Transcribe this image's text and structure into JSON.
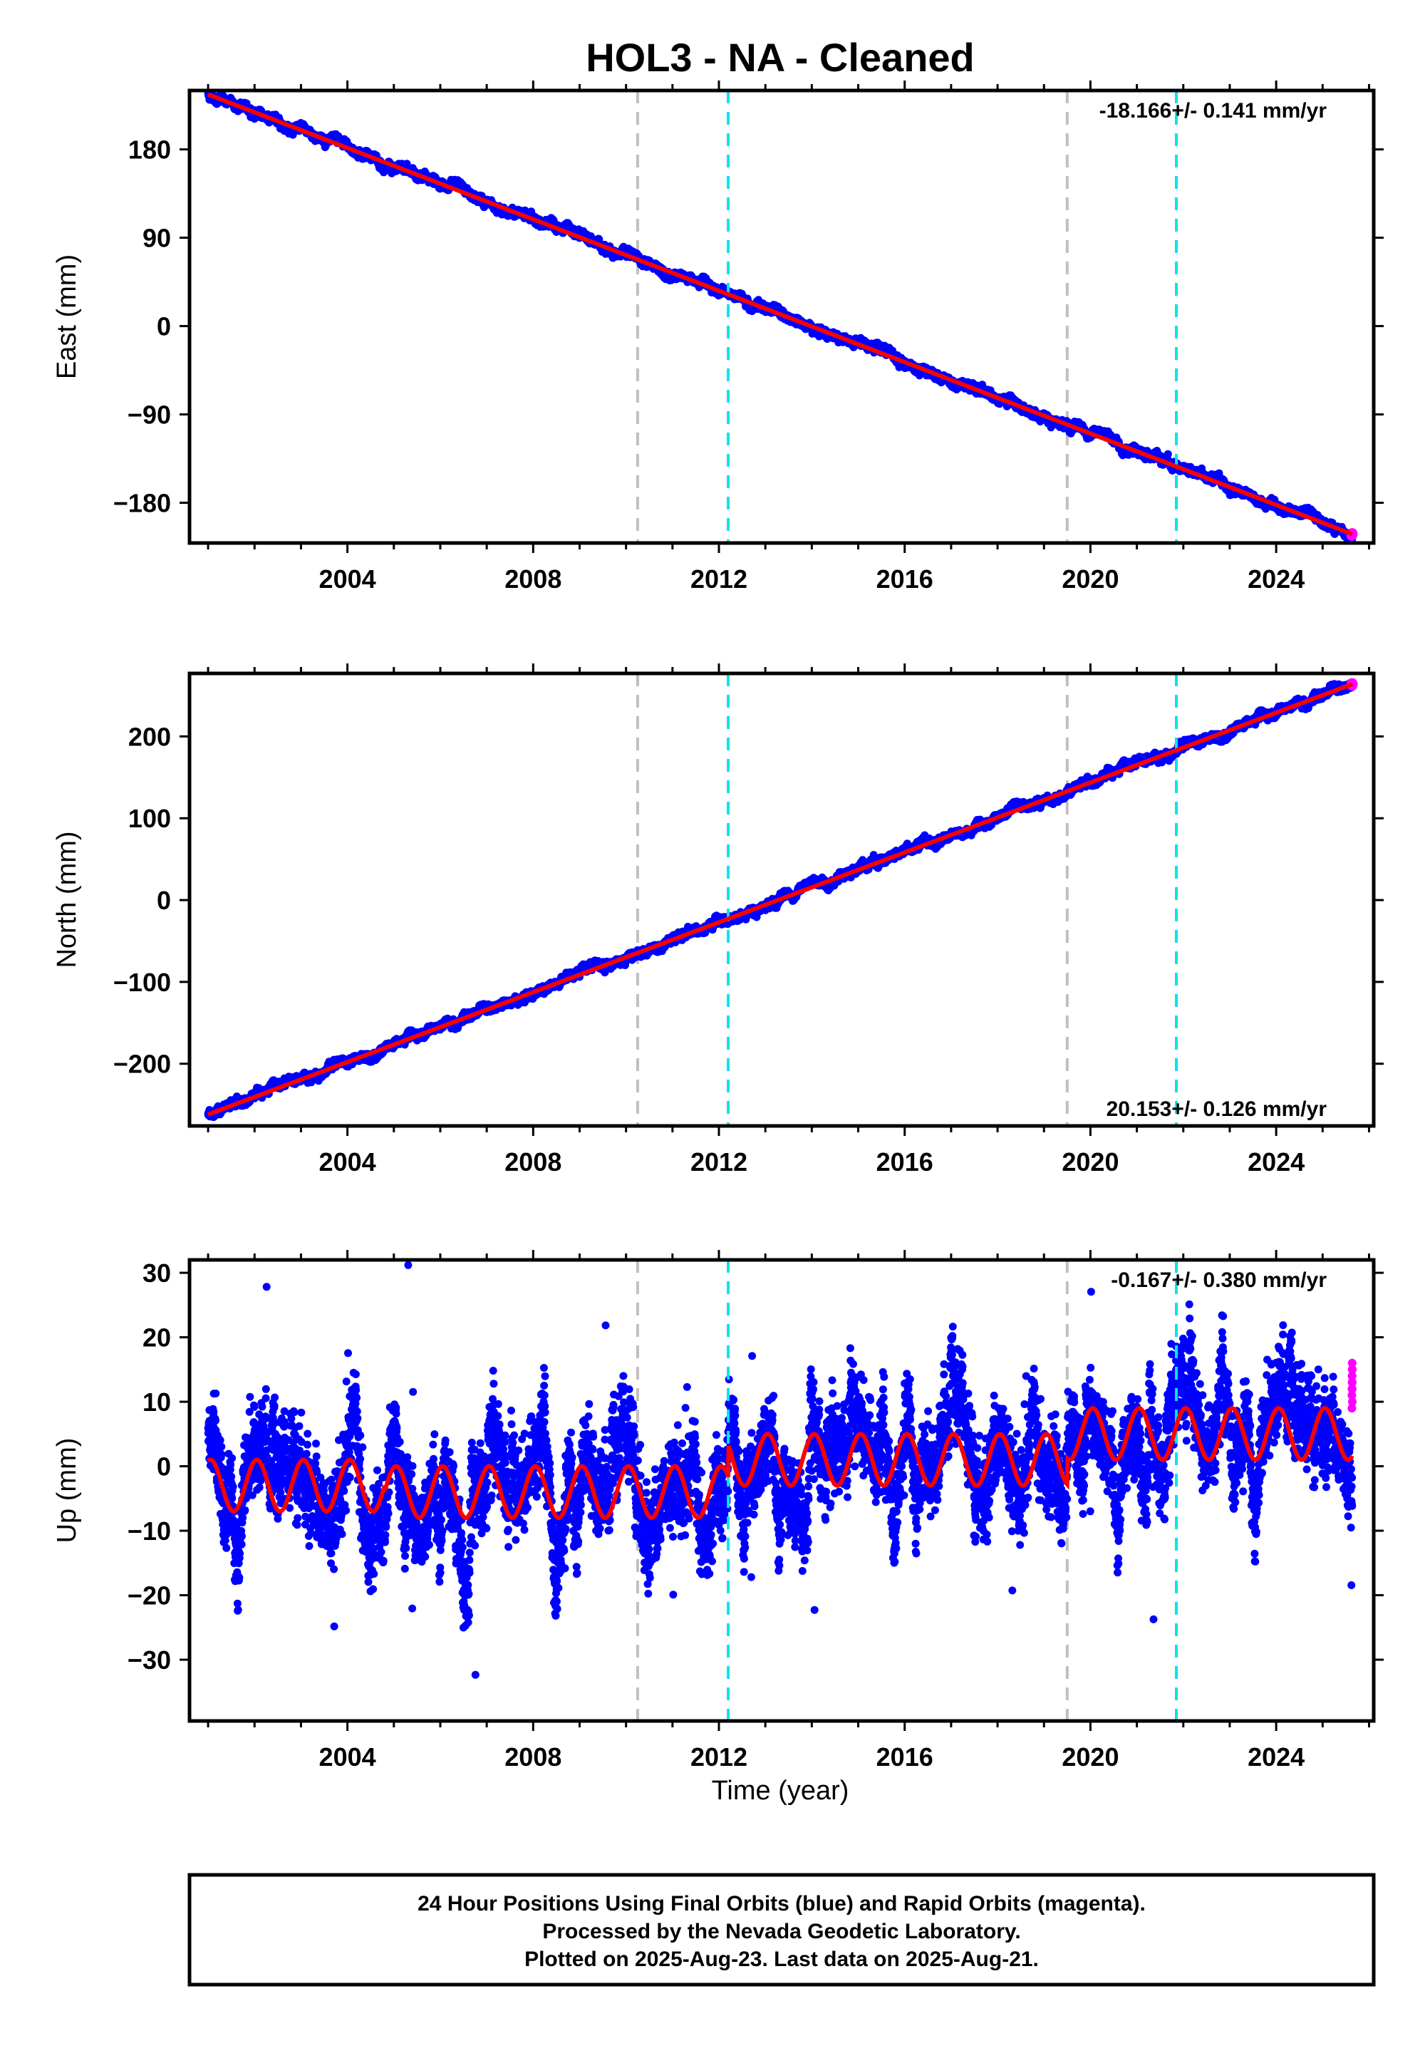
{
  "title": "HOL3  - NA - Cleaned",
  "colors": {
    "final_orbit_points": "#0000ff",
    "rapid_orbit_points": "#ff00ff",
    "model_line": "#ff0000",
    "equipment_change_line": "#c0c0c0",
    "earthquake_line": "#00e5ee"
  },
  "x_axis": {
    "label": "Time (year)",
    "range": [
      2000.6,
      2026.1
    ],
    "ticks": [
      2004,
      2008,
      2012,
      2016,
      2020,
      2024
    ]
  },
  "vertical_lines": {
    "gray": [
      2010.25,
      2019.5
    ],
    "cyan": [
      2012.2,
      2021.85
    ]
  },
  "chart_data": [
    {
      "type": "scatter",
      "name": "east",
      "ylabel": "East (mm)",
      "ylim": [
        -221,
        240
      ],
      "yticks": [
        180,
        90,
        0,
        -90,
        -180
      ],
      "rate_text": "-18.166+/- 0.141 mm/yr",
      "rate_position": "top-right",
      "data_start": 2001.0,
      "data_end": 2025.64,
      "start_value": 236,
      "end_value": -212,
      "noise_amplitude": 2.5,
      "seasonal_amplitude": 0
    },
    {
      "type": "scatter",
      "name": "north",
      "ylabel": "North (mm)",
      "ylim": [
        -276,
        277
      ],
      "yticks": [
        200,
        100,
        0,
        -100,
        -200
      ],
      "rate_text": "20.153+/- 0.126 mm/yr",
      "rate_position": "bottom-right",
      "data_start": 2001.0,
      "data_end": 2025.64,
      "start_value": -262,
      "end_value": 264,
      "noise_amplitude": 3,
      "seasonal_amplitude": 0
    },
    {
      "type": "scatter",
      "name": "up",
      "ylabel": "Up (mm)",
      "ylim": [
        -39.5,
        32
      ],
      "yticks": [
        30,
        20,
        10,
        0,
        -10,
        -20,
        -30
      ],
      "rate_text": "-0.167+/- 0.380 mm/yr",
      "rate_position": "top-right",
      "data_start": 2001.0,
      "data_end": 2025.64,
      "seasonal_amplitude": 4,
      "noise_amplitude": 4.5,
      "offsets": [
        {
          "from": 2001.0,
          "to": 2004.8,
          "mean": -3
        },
        {
          "from": 2004.8,
          "to": 2012.2,
          "mean": -4
        },
        {
          "from": 2012.2,
          "to": 2019.5,
          "mean": 1
        },
        {
          "from": 2019.5,
          "to": 2025.64,
          "mean": 5
        }
      ],
      "rapid_values": [
        9,
        11,
        12,
        13,
        14,
        15,
        16,
        14,
        12,
        10,
        13,
        15
      ]
    }
  ],
  "footer": {
    "line1": "24 Hour Positions Using Final Orbits (blue) and Rapid Orbits (magenta).",
    "line2": "Processed by the Nevada Geodetic Laboratory.",
    "line3": "Plotted on 2025-Aug-23. Last data on 2025-Aug-21."
  }
}
